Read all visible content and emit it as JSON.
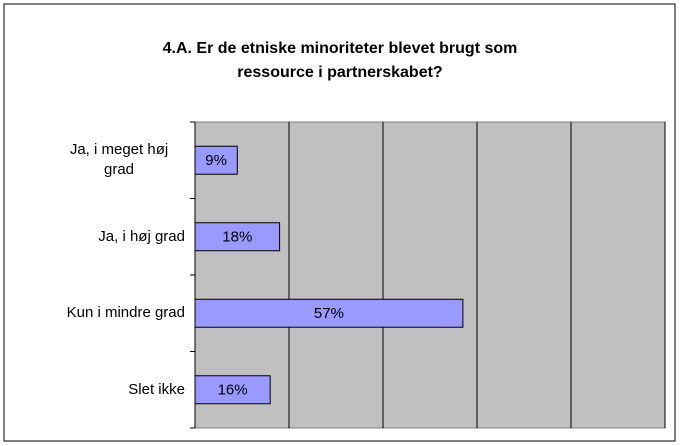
{
  "chart_data": {
    "type": "bar",
    "orientation": "horizontal",
    "title": "4.A. Er de etniske minoriteter blevet brugt som ressource i partnerskabet?",
    "categories": [
      "Ja, i meget høj grad",
      "Ja, i høj grad",
      "Kun i mindre grad",
      "Slet ikke"
    ],
    "values": [
      9,
      18,
      57,
      16
    ],
    "value_labels": [
      "9%",
      "18%",
      "57%",
      "16%"
    ],
    "color": "#9999ff",
    "xlim": [
      0,
      100
    ],
    "xticks": [
      0,
      20,
      40,
      60,
      80,
      100
    ],
    "grid": true
  }
}
